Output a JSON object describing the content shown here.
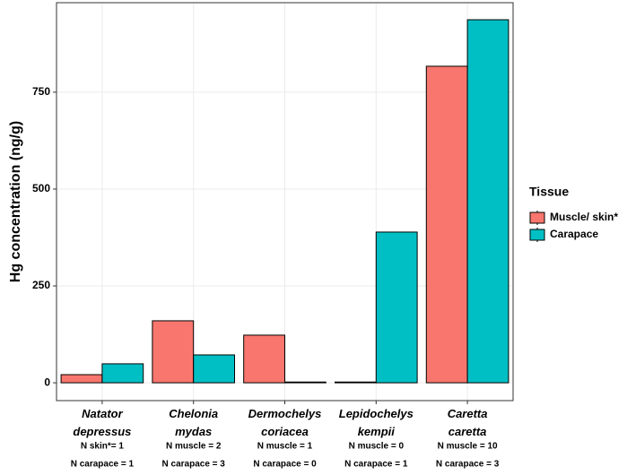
{
  "chart_data": {
    "type": "bar",
    "ylabel": "Hg concentration (ng/g)",
    "categories": [
      "Natator depressus",
      "Chelonia mydas",
      "Dermochelys coriacea",
      "Lepidochelys kempii",
      "Caretta caretta"
    ],
    "series": [
      {
        "name": "Muscle/ skin*",
        "color": "#F8766D",
        "values": [
          21,
          160,
          123,
          2,
          817
        ]
      },
      {
        "name": "Carapace",
        "color": "#00BFC4",
        "values": [
          49,
          72,
          2,
          389,
          937
        ]
      }
    ],
    "sample_sizes": [
      [
        "N skin*= 1",
        "N carapace = 1"
      ],
      [
        "N muscle = 2",
        "N carapace = 3"
      ],
      [
        "N muscle = 1",
        "N carapace = 0"
      ],
      [
        "N muscle = 0",
        "N carapace = 1"
      ],
      [
        "N muscle = 10",
        "N carapace = 3"
      ]
    ],
    "legend_title": "Tissue",
    "legend": "right",
    "ylim": [
      -46,
      981
    ],
    "yticks": [
      0,
      250,
      500,
      750
    ],
    "grid": true
  }
}
